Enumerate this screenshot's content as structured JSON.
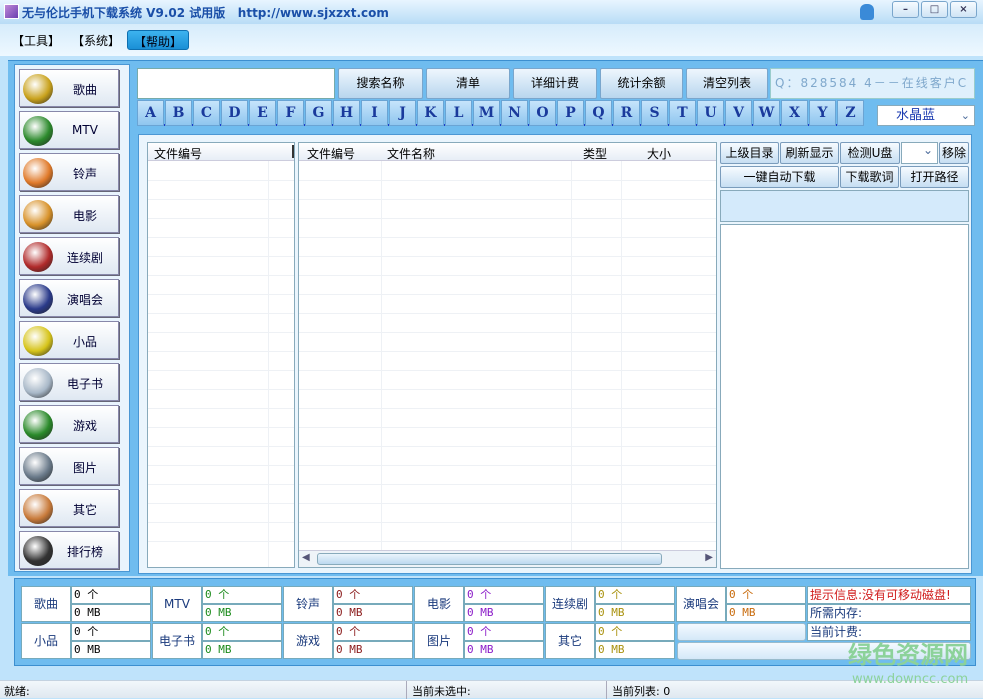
{
  "title": "无与伦比手机下载系统 V9.02 试用版   http://www.sjxzxt.com",
  "window_buttons": [
    "–",
    "□",
    "×"
  ],
  "menu": [
    "【工具】",
    "【系统】",
    "【帮助】"
  ],
  "sidebar": [
    {
      "label": "歌曲",
      "color": "#c9a21c"
    },
    {
      "label": "MTV",
      "color": "#2c8a2c"
    },
    {
      "label": "铃声",
      "color": "#e07a2a"
    },
    {
      "label": "电影",
      "color": "#d8922a"
    },
    {
      "label": "连续剧",
      "color": "#b02a2a"
    },
    {
      "label": "演唱会",
      "color": "#2a3a8a"
    },
    {
      "label": "小品",
      "color": "#d6c41a"
    },
    {
      "label": "电子书",
      "color": "#a8b8c8"
    },
    {
      "label": "游戏",
      "color": "#2a8a2a"
    },
    {
      "label": "图片",
      "color": "#6a7a8a"
    },
    {
      "label": "其它",
      "color": "#c87a3a"
    },
    {
      "label": "排行榜",
      "color": "#333333"
    }
  ],
  "search": {
    "value": ""
  },
  "toolbar": [
    "搜索名称",
    "清单",
    "详细计费",
    "统计余额",
    "清空列表"
  ],
  "qq_text": "Q：828584 4－－在线客户C",
  "letters": [
    "A",
    "B",
    "C",
    "D",
    "E",
    "F",
    "G",
    "H",
    "I",
    "J",
    "K",
    "L",
    "M",
    "N",
    "O",
    "P",
    "Q",
    "R",
    "S",
    "T",
    "U",
    "V",
    "W",
    "X",
    "Y",
    "Z"
  ],
  "skin": "水晶蓝",
  "left_list": {
    "headers": [
      "文件编号"
    ]
  },
  "center_list": {
    "headers": [
      "文件编号",
      "文件名称",
      "类型",
      "大小"
    ]
  },
  "right_buttons": {
    "up": "上级目录",
    "refresh": "刷新显示",
    "detect": "检测U盘",
    "remove": "移除",
    "auto": "一键自动下载",
    "lyrics": "下载歌词",
    "open": "打开路径"
  },
  "stats": [
    {
      "label": "歌曲",
      "count": "0 个",
      "size": "0 MB",
      "color": "#000000"
    },
    {
      "label": "MTV",
      "count": "0 个",
      "size": "0 MB",
      "color": "#1a8a1a"
    },
    {
      "label": "铃声",
      "count": "0 个",
      "size": "0 MB",
      "color": "#8a1a1a"
    },
    {
      "label": "电影",
      "count": "0 个",
      "size": "0 MB",
      "color": "#8a1ac8"
    },
    {
      "label": "连续剧",
      "count": "0 个",
      "size": "0 MB",
      "color": "#a8900a"
    },
    {
      "label": "演唱会",
      "count": "0 个",
      "size": "0 MB",
      "color": "#c86a0a"
    },
    {
      "label": "小品",
      "count": "0 个",
      "size": "0 MB",
      "color": "#000000"
    },
    {
      "label": "电子书",
      "count": "0 个",
      "size": "0 MB",
      "color": "#1a8a1a"
    },
    {
      "label": "游戏",
      "count": "0 个",
      "size": "0 MB",
      "color": "#8a1a1a"
    },
    {
      "label": "图片",
      "count": "0 个",
      "size": "0 MB",
      "color": "#8a1ac8"
    },
    {
      "label": "其它",
      "count": "0 个",
      "size": "0 MB",
      "color": "#a8900a"
    }
  ],
  "info": {
    "hint": "提示信息:没有可移动磁盘!",
    "memory": "所需内存:",
    "fee": "当前计费:"
  },
  "status": {
    "ready": "就绪:",
    "selected": "当前未选中:",
    "list": "当前列表: 0"
  },
  "watermark": {
    "cn": "绿色资源网",
    "url": "www.downcc.com"
  }
}
